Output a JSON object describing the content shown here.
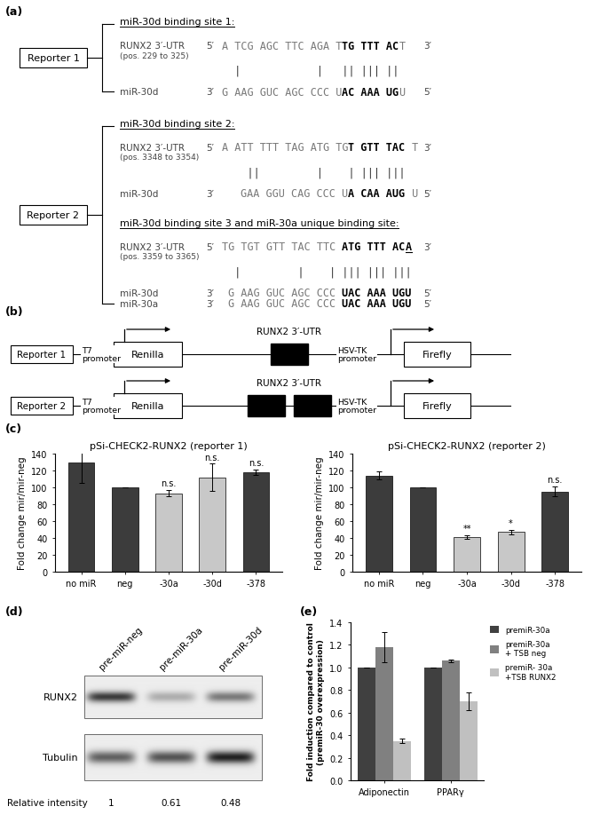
{
  "panel_labels": [
    "(a)",
    "(b)",
    "(c)",
    "(d)",
    "(e)"
  ],
  "panel_a": {
    "reporters": [
      {
        "name": "Reporter 1",
        "sites": [
          {
            "heading": "miR-30d binding site 1:",
            "rows": [
              {
                "label": "RUNX2 3′-UTR",
                "sublabel": "(pos. 229 to 325)",
                "left_end": "5′",
                "right_end": "3′",
                "sequence": [
                  {
                    "text": "A TCG AGC TTC AGA T",
                    "bold": false
                  },
                  {
                    "text": "TG TTT AC",
                    "bold": true
                  },
                  {
                    "text": "T",
                    "bold": false
                  }
                ]
              },
              {
                "pairs": "  |            |   || ||| ||"
              },
              {
                "label": "miR-30d",
                "left_end": "3′",
                "right_end": "5′",
                "sequence": [
                  {
                    "text": "G AAG GUC AGC CCC U",
                    "bold": false
                  },
                  {
                    "text": "AC AAA UG",
                    "bold": true
                  },
                  {
                    "text": "U",
                    "bold": false
                  }
                ]
              }
            ]
          }
        ]
      },
      {
        "name": "Reporter 2",
        "sites": [
          {
            "heading": "miR-30d binding site 2:",
            "rows": [
              {
                "label": "RUNX2 3′-UTR",
                "sublabel": "(pos. 3348 to 3354)",
                "left_end": "5′",
                "right_end": "3′",
                "sequence": [
                  {
                    "text": "A ATT TTT TAG ATG TG",
                    "bold": false
                  },
                  {
                    "text": "T GTT TAC",
                    "bold": true
                  },
                  {
                    "text": " T",
                    "bold": false
                  }
                ]
              },
              {
                "pairs": "    ||         |    | ||| |||"
              },
              {
                "label": "miR-30d",
                "left_end": "3′",
                "right_end": "5′",
                "sequence": [
                  {
                    "text": "GAA GGU CAG CCC U",
                    "bold": false
                  },
                  {
                    "text": "A CAA AUG",
                    "bold": true
                  },
                  {
                    "text": " U",
                    "bold": false
                  }
                ]
              }
            ]
          },
          {
            "heading": "miR-30d binding site 3 and miR-30a unique binding site:",
            "rows": [
              {
                "label": "RUNX2 3′-UTR",
                "sublabel": "(pos. 3359 to 3365)",
                "left_end": "5′",
                "right_end": "3′",
                "sequence": [
                  {
                    "text": "TG TGT GTT TAC TTC ",
                    "bold": false
                  },
                  {
                    "text": "ATG TTT AC",
                    "bold": true
                  },
                  {
                    "text": "A",
                    "bold": true,
                    "underline": true
                  }
                ]
              },
              {
                "pairs": "  |         |    | ||| ||| |||"
              },
              {
                "label": "miR-30d",
                "left_end": "3′",
                "right_end": "5′",
                "sequence": [
                  {
                    "text": "G AAG GUC AGC CCC ",
                    "bold": false
                  },
                  {
                    "text": "UAC AAA UGU",
                    "bold": true
                  }
                ]
              },
              {
                "label": "miR-30a",
                "left_end": "3′",
                "right_end": "5′",
                "sequence": [
                  {
                    "text": "G AAG GUC AGC CCC ",
                    "bold": false
                  },
                  {
                    "text": "UAC AAA UGU",
                    "bold": true
                  }
                ]
              }
            ]
          }
        ]
      }
    ]
  },
  "panel_b": {
    "constructs": [
      {
        "name": "Reporter 1",
        "promoter_1": "T7\npromoter",
        "gene_1": "Renilla",
        "insert": "RUNX2 3′-UTR",
        "insert_copies": 1,
        "promoter_2": "HSV-TK\npromoter",
        "gene_2": "Firefly"
      },
      {
        "name": "Reporter 2",
        "promoter_1": "T7\npromoter",
        "gene_1": "Renilla",
        "insert": "RUNX2 3′-UTR",
        "insert_copies": 2,
        "promoter_2": "HSV-TK\npromoter",
        "gene_2": "Firefly"
      }
    ]
  },
  "panel_d": {
    "lanes": [
      "pre-miR-neg",
      "pre-miR-30a",
      "pre-miR-30d"
    ],
    "blots": [
      "RUNX2",
      "Tubulin"
    ],
    "intensity_label": "Relative intensity",
    "relative_intensity": [
      1,
      0.61,
      0.48
    ]
  },
  "chart_data": [
    {
      "type": "bar",
      "title": "pSi-CHECK2-RUNX2 (reporter 1)",
      "y_label": "Fold change mir/mir-neg",
      "categories": [
        "no miR",
        "neg",
        "-30a",
        "-30d",
        "-378"
      ],
      "values": [
        130,
        100,
        93,
        112,
        118
      ],
      "errors": [
        25,
        0.5,
        4,
        16,
        3
      ],
      "colors": [
        "#3c3c3c",
        "#3c3c3c",
        "#c8c8c8",
        "#c8c8c8",
        "#3c3c3c"
      ],
      "annotations": [
        null,
        null,
        "n.s.",
        "n.s.",
        "n.s."
      ],
      "ylim": [
        0,
        140
      ],
      "yticks": [
        0,
        20,
        40,
        60,
        80,
        100,
        120,
        140
      ]
    },
    {
      "type": "bar",
      "title": "pSi-CHECK2-RUNX2 (reporter 2)",
      "y_label": "Fold change mir/mir-neg",
      "categories": [
        "no miR",
        "neg",
        "-30a",
        "-30d",
        "-378"
      ],
      "values": [
        114,
        100,
        41,
        47,
        95
      ],
      "errors": [
        5,
        0.5,
        2,
        3,
        6
      ],
      "colors": [
        "#3c3c3c",
        "#3c3c3c",
        "#c8c8c8",
        "#c8c8c8",
        "#3c3c3c"
      ],
      "annotations": [
        null,
        null,
        "**",
        "*",
        "n.s."
      ],
      "ylim": [
        0,
        140
      ],
      "yticks": [
        0,
        20,
        40,
        60,
        80,
        100,
        120,
        140
      ]
    },
    {
      "type": "bar",
      "y_label": "Fold induction compared to control\n(premiR-30 overexpression)",
      "categories": [
        "Adiponectin",
        "PPARγ"
      ],
      "series": [
        {
          "name": "premiR-30a",
          "color": "#404040",
          "values": [
            1.0,
            1.0
          ],
          "errors": [
            0,
            0
          ]
        },
        {
          "name": "premiR-30a\n+ TSB neg",
          "color": "#808080",
          "values": [
            1.18,
            1.06
          ],
          "errors": [
            0.13,
            0.01
          ]
        },
        {
          "name": "premiR- 30a\n+TSB RUNX2",
          "color": "#c0c0c0",
          "values": [
            0.35,
            0.7
          ],
          "errors": [
            0.02,
            0.08
          ]
        }
      ],
      "ylim": [
        0,
        1.4
      ],
      "yticks": [
        {
          "value": 0,
          "label": "0.0"
        },
        {
          "value": 0.2,
          "label": "0.2"
        },
        {
          "value": 0.4,
          "label": "0.4"
        },
        {
          "value": 0.6,
          "label": "0.6"
        },
        {
          "value": 0.8,
          "label": "0.8"
        },
        {
          "value": 1,
          "label": "1.0"
        },
        {
          "value": 1.2,
          "label": "1.2"
        },
        {
          "value": 1.4,
          "label": "1.4"
        }
      ],
      "legend": "right"
    }
  ]
}
